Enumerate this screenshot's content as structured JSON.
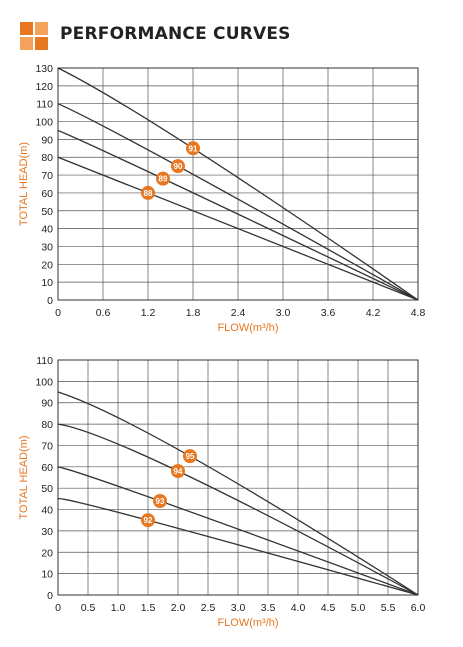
{
  "header": {
    "title": "PERFORMANCE CURVES",
    "logo_icon": "orange-squares-logo"
  },
  "colors": {
    "accent": "#e87722",
    "accent_light": "#f5a25d",
    "curve": "#333333",
    "grid": "#555555"
  },
  "chart_data": [
    {
      "type": "line",
      "title": "",
      "xlabel": "FLOW(m³/h)",
      "ylabel": "TOTAL HEAD(m)",
      "xlim": [
        0,
        4.8
      ],
      "ylim": [
        0,
        130
      ],
      "xticks": [
        0,
        0.6,
        1.2,
        1.8,
        2.4,
        3.0,
        3.6,
        4.2,
        4.8
      ],
      "xtick_labels": [
        "0",
        "0.6",
        "1.2",
        "1.8",
        "2.4",
        "3.0",
        "3.6",
        "4.2",
        "4.8"
      ],
      "yticks": [
        0,
        10,
        20,
        30,
        40,
        50,
        60,
        70,
        80,
        90,
        100,
        110,
        120,
        130
      ],
      "grid": true,
      "series": [
        {
          "x": [
            0,
            1.8,
            4.8
          ],
          "y": [
            130,
            85,
            0
          ],
          "marker": {
            "label": "91",
            "x": 1.8,
            "y": 85
          }
        },
        {
          "x": [
            0,
            1.6,
            4.8
          ],
          "y": [
            110,
            75,
            0
          ],
          "marker": {
            "label": "90",
            "x": 1.6,
            "y": 75
          }
        },
        {
          "x": [
            0,
            1.4,
            4.8
          ],
          "y": [
            95,
            68,
            0
          ],
          "marker": {
            "label": "89",
            "x": 1.4,
            "y": 68
          }
        },
        {
          "x": [
            0,
            1.2,
            4.8
          ],
          "y": [
            80,
            60,
            0
          ],
          "marker": {
            "label": "88",
            "x": 1.2,
            "y": 60
          }
        }
      ]
    },
    {
      "type": "line",
      "title": "",
      "xlabel": "FLOW(m³/h)",
      "ylabel": "TOTAL HEAD(m)",
      "xlim": [
        0,
        6.0
      ],
      "ylim": [
        0,
        110
      ],
      "xticks": [
        0,
        0.5,
        1.0,
        1.5,
        2.0,
        2.5,
        3.0,
        3.5,
        4.0,
        4.5,
        5.0,
        5.5,
        6.0
      ],
      "xtick_labels": [
        "0",
        "0.5",
        "1.0",
        "1.5",
        "2.0",
        "2.5",
        "3.0",
        "3.5",
        "4.0",
        "4.5",
        "5.0",
        "5.5",
        "6.0"
      ],
      "yticks": [
        0,
        10,
        20,
        30,
        40,
        50,
        60,
        70,
        80,
        90,
        100,
        110
      ],
      "grid": true,
      "series": [
        {
          "x": [
            0,
            2.2,
            6.0
          ],
          "y": [
            95,
            65,
            0
          ],
          "marker": {
            "label": "95",
            "x": 2.2,
            "y": 65
          }
        },
        {
          "x": [
            0,
            2.0,
            6.0
          ],
          "y": [
            80,
            58,
            0
          ],
          "marker": {
            "label": "94",
            "x": 2.0,
            "y": 58
          }
        },
        {
          "x": [
            0,
            1.7,
            6.0
          ],
          "y": [
            60,
            44,
            0
          ],
          "marker": {
            "label": "93",
            "x": 1.7,
            "y": 44
          }
        },
        {
          "x": [
            0,
            1.5,
            6.0
          ],
          "y": [
            45,
            35,
            0
          ],
          "marker": {
            "label": "92",
            "x": 1.5,
            "y": 35
          }
        }
      ]
    }
  ]
}
